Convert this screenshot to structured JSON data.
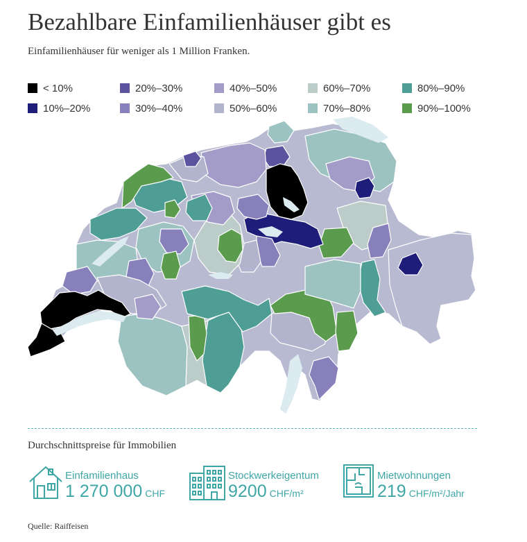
{
  "title": "Bezahlbare Einfamilienhäuser gibt es",
  "subtitle": "Einfamilienhäuser für weniger als 1 Million Franken.",
  "legend": [
    {
      "label": "< 10%",
      "color": "#000000"
    },
    {
      "label": "10%–20%",
      "color": "#1f1d7a"
    },
    {
      "label": "20%–30%",
      "color": "#5b539d"
    },
    {
      "label": "30%–40%",
      "color": "#8880bb"
    },
    {
      "label": "40%–50%",
      "color": "#a39cc9"
    },
    {
      "label": "50%–60%",
      "color": "#b1b4cc"
    },
    {
      "label": "60%–70%",
      "color": "#bcccc9"
    },
    {
      "label": "70%–80%",
      "color": "#9cc3c1"
    },
    {
      "label": "80%–90%",
      "color": "#4f9e96"
    },
    {
      "label": "90%–100%",
      "color": "#5a9b4d"
    }
  ],
  "stats_title": "Durchschnittspreise für Immobilien",
  "stats": [
    {
      "label": "Einfamilienhaus",
      "value": "1 270 000",
      "unit": "CHF",
      "icon": "house-icon"
    },
    {
      "label": "Stockwerkeigentum",
      "value": "9200",
      "unit": "CHF/m²",
      "icon": "apartment-building-icon"
    },
    {
      "label": "Mietwohnungen",
      "value": "219",
      "unit": "CHF/m²/Jahr",
      "icon": "floor-plan-icon"
    }
  ],
  "source": "Quelle: Raiffeisen",
  "colors": {
    "accent": "#3fa6a6",
    "lake": "#dcebf0"
  }
}
